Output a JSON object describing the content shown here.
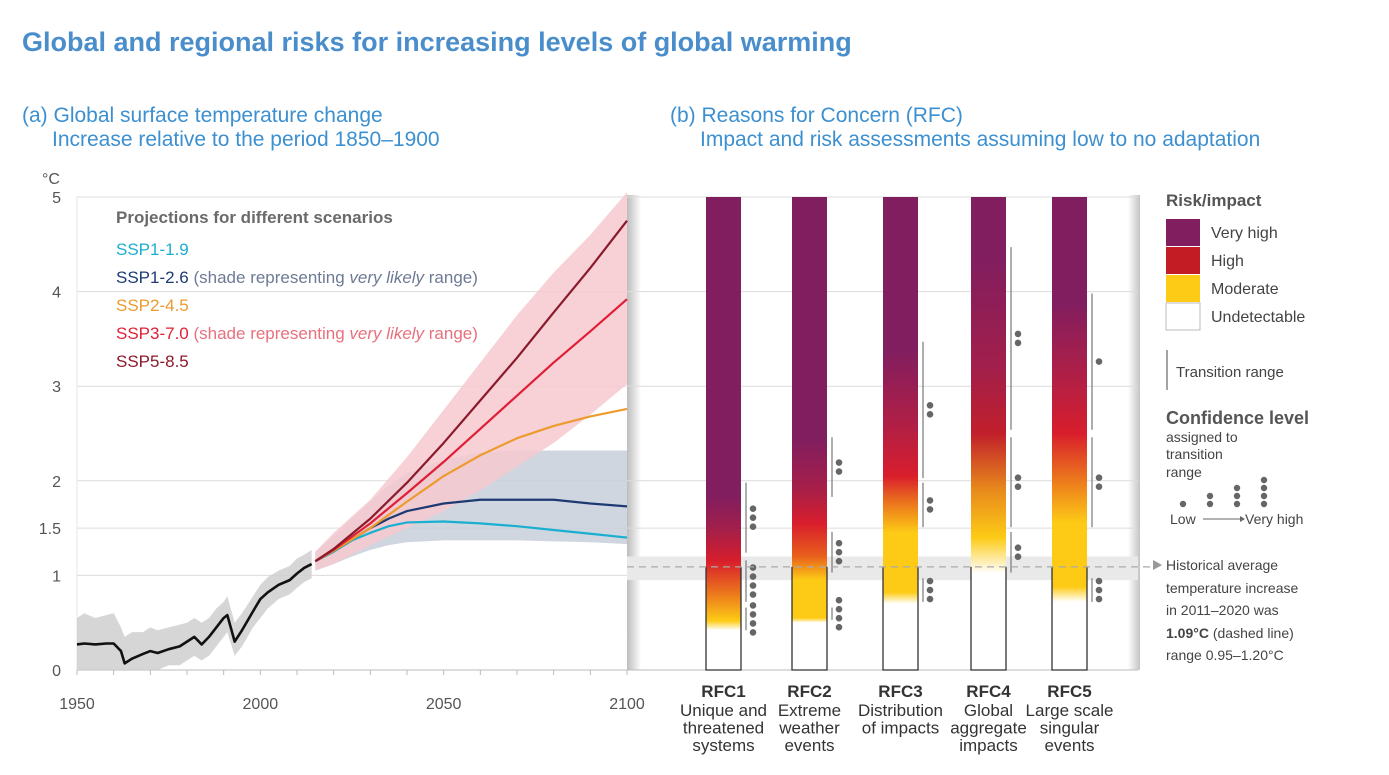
{
  "title": "Global and regional risks for increasing levels of global warming",
  "panel_a": {
    "title_line1": "(a) Global surface temperature change",
    "title_line2": "Increase relative to the period 1850–1900"
  },
  "panel_b": {
    "title_line1": "(b) Reasons for Concern (RFC)",
    "title_line2": "Impact and risk assessments assuming low to no adaptation"
  },
  "chart_data": [
    {
      "type": "line",
      "ylabel": "°C",
      "xlim": [
        1950,
        2100
      ],
      "ylim": [
        0,
        5
      ],
      "x_ticks": [
        1950,
        2000,
        2050,
        2100
      ],
      "y_ticks": [
        0,
        1,
        1.5,
        2,
        3,
        4,
        5
      ],
      "grid": true,
      "legend_title": "Projections for different scenarios",
      "legend_placement": "top-left",
      "historical": {
        "color": "#111111",
        "x": [
          1950,
          1952,
          1955,
          1958,
          1960,
          1962,
          1963,
          1965,
          1968,
          1970,
          1972,
          1975,
          1978,
          1980,
          1982,
          1984,
          1986,
          1988,
          1990,
          1991,
          1993,
          1995,
          1998,
          2000,
          2002,
          2005,
          2008,
          2010,
          2012,
          2014
        ],
        "y": [
          0.27,
          0.28,
          0.27,
          0.28,
          0.28,
          0.2,
          0.07,
          0.12,
          0.17,
          0.2,
          0.18,
          0.22,
          0.25,
          0.3,
          0.35,
          0.27,
          0.35,
          0.45,
          0.55,
          0.58,
          0.3,
          0.42,
          0.62,
          0.75,
          0.82,
          0.9,
          0.95,
          1.02,
          1.08,
          1.12
        ],
        "range_low": [
          0.0,
          0.0,
          0.0,
          0.0,
          0.0,
          -0.05,
          -0.15,
          -0.1,
          -0.05,
          0.0,
          0.0,
          0.05,
          0.05,
          0.1,
          0.15,
          0.1,
          0.15,
          0.25,
          0.35,
          0.4,
          0.15,
          0.25,
          0.45,
          0.55,
          0.65,
          0.75,
          0.8,
          0.87,
          0.93,
          0.97
        ],
        "range_high": [
          0.55,
          0.6,
          0.55,
          0.58,
          0.6,
          0.45,
          0.35,
          0.4,
          0.4,
          0.45,
          0.42,
          0.45,
          0.48,
          0.5,
          0.55,
          0.5,
          0.55,
          0.65,
          0.72,
          0.78,
          0.5,
          0.6,
          0.78,
          0.9,
          0.98,
          1.05,
          1.1,
          1.18,
          1.22,
          1.27
        ]
      },
      "series": [
        {
          "name": "SSP1-1.9",
          "color": "#1aafd0",
          "x": [
            2015,
            2020,
            2025,
            2030,
            2035,
            2040,
            2050,
            2060,
            2070,
            2080,
            2090,
            2100
          ],
          "y": [
            1.15,
            1.25,
            1.37,
            1.45,
            1.52,
            1.56,
            1.57,
            1.55,
            1.52,
            1.48,
            1.44,
            1.4
          ]
        },
        {
          "name": "SSP1-2.6",
          "note_pre": " (shade representing ",
          "note_em": "very likely",
          "note_post": " range)",
          "note_color": "#6e7a95",
          "color": "#1d3a73",
          "x": [
            2015,
            2020,
            2025,
            2030,
            2035,
            2040,
            2050,
            2060,
            2070,
            2080,
            2090,
            2100
          ],
          "y": [
            1.15,
            1.26,
            1.38,
            1.5,
            1.6,
            1.68,
            1.76,
            1.8,
            1.8,
            1.8,
            1.76,
            1.73
          ],
          "range_low": [
            1.05,
            1.12,
            1.2,
            1.27,
            1.32,
            1.35,
            1.37,
            1.37,
            1.37,
            1.36,
            1.35,
            1.33
          ],
          "range_high": [
            1.25,
            1.42,
            1.6,
            1.78,
            1.95,
            2.08,
            2.22,
            2.3,
            2.32,
            2.32,
            2.32,
            2.32
          ],
          "range_color": "#c8cfdb"
        },
        {
          "name": "SSP2-4.5",
          "color": "#eb9b2f",
          "x": [
            2015,
            2020,
            2030,
            2040,
            2050,
            2060,
            2070,
            2080,
            2090,
            2100
          ],
          "y": [
            1.15,
            1.26,
            1.5,
            1.78,
            2.05,
            2.27,
            2.45,
            2.58,
            2.68,
            2.76
          ]
        },
        {
          "name": "SSP3-7.0",
          "note_pre": " (shade representing ",
          "note_em": "very likely",
          "note_post": " range)",
          "note_color": "#e8707d",
          "color": "#e01f36",
          "x": [
            2015,
            2020,
            2030,
            2040,
            2050,
            2060,
            2070,
            2080,
            2090,
            2100
          ],
          "y": [
            1.15,
            1.27,
            1.55,
            1.87,
            2.2,
            2.55,
            2.9,
            3.25,
            3.58,
            3.92
          ],
          "range_low": [
            1.05,
            1.12,
            1.32,
            1.5,
            1.68,
            1.9,
            2.15,
            2.4,
            2.7,
            3.02
          ],
          "range_high": [
            1.25,
            1.45,
            1.8,
            2.25,
            2.75,
            3.25,
            3.75,
            4.2,
            4.6,
            5.05
          ],
          "range_color": "#f6c9cf"
        },
        {
          "name": "SSP5-8.5",
          "color": "#8b1a2b",
          "x": [
            2015,
            2020,
            2030,
            2040,
            2050,
            2060,
            2070,
            2080,
            2090,
            2100
          ],
          "y": [
            1.15,
            1.28,
            1.6,
            1.98,
            2.4,
            2.85,
            3.3,
            3.78,
            4.25,
            4.75
          ]
        }
      ]
    },
    {
      "type": "bar",
      "title": "Reasons for Concern (RFC)",
      "ylim": [
        0,
        5
      ],
      "categories": [
        {
          "code": "RFC1",
          "desc": [
            "Unique and",
            "threatened",
            "systems"
          ]
        },
        {
          "code": "RFC2",
          "desc": [
            "Extreme",
            "weather",
            "events"
          ]
        },
        {
          "code": "RFC3",
          "desc": [
            "Distribution",
            "of impacts"
          ]
        },
        {
          "code": "RFC4",
          "desc": [
            "Global",
            "aggregate",
            "impacts"
          ]
        },
        {
          "code": "RFC5",
          "desc": [
            "Large scale",
            "singular",
            "events"
          ]
        }
      ],
      "risk_levels": [
        [
          [
            0.42,
            "#ffffff"
          ],
          [
            0.52,
            "#fdcb16"
          ],
          [
            0.8,
            "#ec7a1c"
          ],
          [
            1.15,
            "#d81e2c"
          ],
          [
            1.5,
            "#a21f4b"
          ],
          [
            1.85,
            "#801e60"
          ]
        ],
        [
          [
            0.5,
            "#ffffff"
          ],
          [
            0.55,
            "#fdcb16"
          ],
          [
            0.95,
            "#fdcb16"
          ],
          [
            1.2,
            "#e8601c"
          ],
          [
            1.55,
            "#d81e2c"
          ],
          [
            1.9,
            "#a81f48"
          ],
          [
            2.45,
            "#801e60"
          ]
        ],
        [
          [
            0.7,
            "#ffffff"
          ],
          [
            0.82,
            "#fdcb16"
          ],
          [
            1.45,
            "#fdcb16"
          ],
          [
            1.75,
            "#ec7a1c"
          ],
          [
            2.05,
            "#d81e2c"
          ],
          [
            2.6,
            "#b01f46"
          ],
          [
            3.4,
            "#801e60"
          ]
        ],
        [
          [
            1.02,
            "#ffffff"
          ],
          [
            1.4,
            "#fdcb16"
          ],
          [
            1.9,
            "#e88a1c"
          ],
          [
            2.5,
            "#c11f2b"
          ],
          [
            3.2,
            "#a21f4b"
          ],
          [
            4.4,
            "#801e60"
          ]
        ],
        [
          [
            0.72,
            "#ffffff"
          ],
          [
            0.88,
            "#fdcb16"
          ],
          [
            1.55,
            "#fdcb16"
          ],
          [
            2.0,
            "#ec7a1c"
          ],
          [
            2.5,
            "#d81e2c"
          ],
          [
            3.1,
            "#b01f46"
          ],
          [
            3.9,
            "#801e60"
          ]
        ]
      ],
      "transitions": [
        [
          {
            "range": [
              1.24,
              1.98
            ],
            "confidence": 3
          },
          {
            "range": [
              0.72,
              1.16
            ],
            "confidence": 4
          },
          {
            "range": [
              0.42,
              0.66
            ],
            "confidence": 4
          }
        ],
        [
          {
            "range": [
              1.83,
              2.46
            ],
            "confidence": 2
          },
          {
            "range": [
              1.03,
              1.46
            ],
            "confidence": 3
          },
          {
            "range": [
              0.53,
              0.66
            ],
            "confidence": 4
          }
        ],
        [
          {
            "range": [
              2.03,
              3.47
            ],
            "confidence": 2
          },
          {
            "range": [
              1.51,
              1.98
            ],
            "confidence": 2
          },
          {
            "range": [
              0.72,
              0.97
            ],
            "confidence": 3
          }
        ],
        [
          {
            "range": [
              2.54,
              4.47
            ],
            "confidence": 2
          },
          {
            "range": [
              1.51,
              2.46
            ],
            "confidence": 2
          },
          {
            "range": [
              1.03,
              1.46
            ],
            "confidence": 2
          }
        ],
        [
          {
            "range": [
              2.54,
              3.98
            ],
            "confidence": 1
          },
          {
            "range": [
              1.51,
              2.46
            ],
            "confidence": 2
          },
          {
            "range": [
              0.72,
              0.97
            ],
            "confidence": 3
          }
        ]
      ],
      "historical_average": 1.09,
      "historical_range": [
        0.95,
        1.2
      ]
    }
  ],
  "legend_b": {
    "risk_title": "Risk/impact",
    "levels": [
      {
        "label": "Very high",
        "color": "#801e60"
      },
      {
        "label": "High",
        "color": "#c41c24"
      },
      {
        "label": "Moderate",
        "color": "#fdcb16"
      },
      {
        "label": "Undetectable",
        "color": "#ffffff"
      }
    ],
    "transition_label": "Transition range",
    "confidence_title": "Confidence level",
    "confidence_sub": [
      "assigned to",
      "transition",
      "range"
    ],
    "low_label": "Low",
    "very_high_label": "Very high",
    "historical_lines": [
      "Historical average",
      "temperature increase",
      "in 2011–2020 was"
    ],
    "historical_value": "1.09°C",
    "historical_value_suffix": " (dashed line)",
    "historical_range_text": "range 0.95–1.20°C"
  }
}
